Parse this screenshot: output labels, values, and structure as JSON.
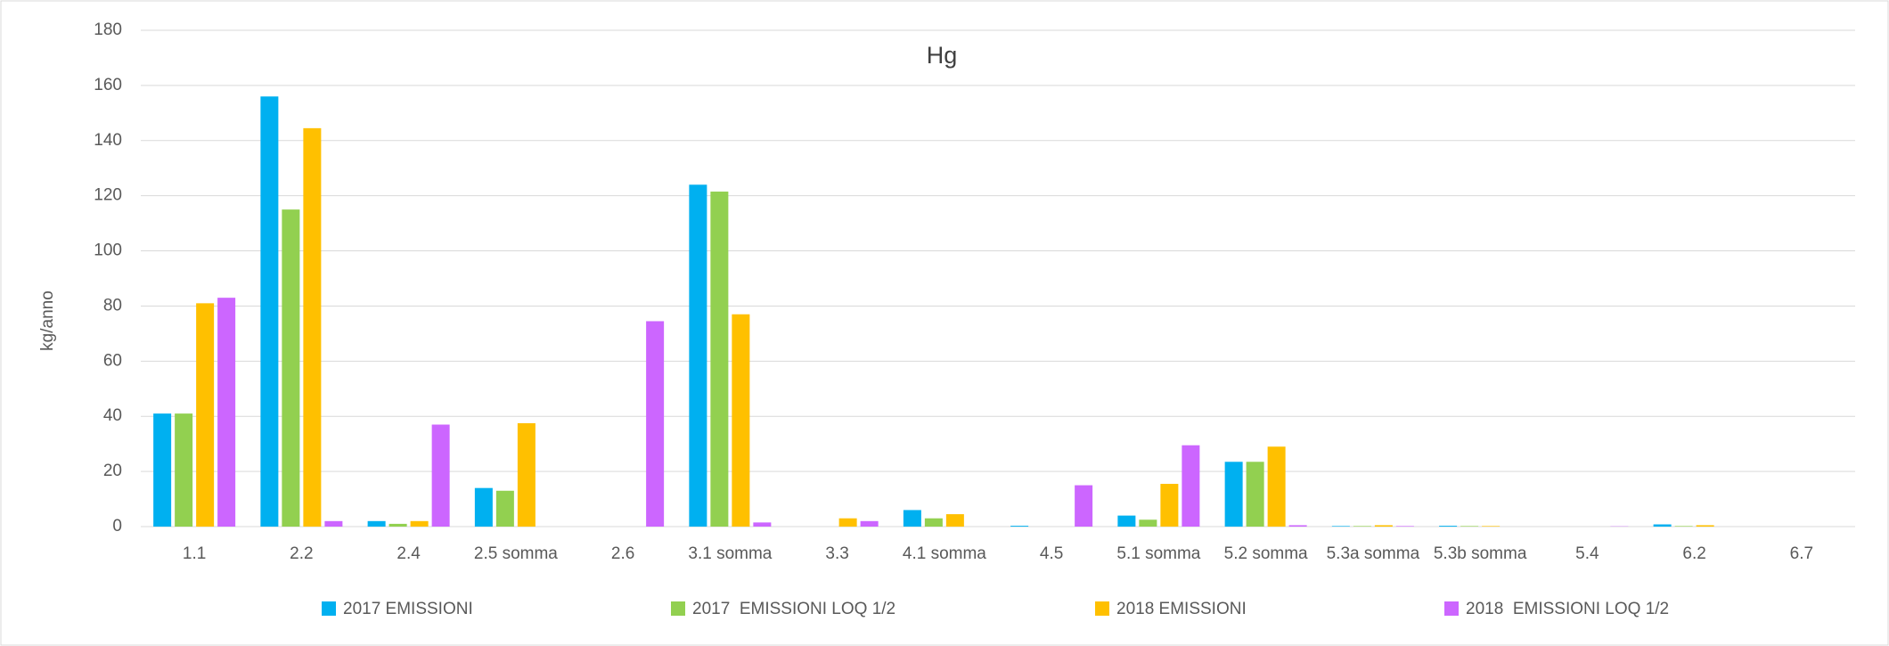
{
  "chart_data": {
    "type": "bar",
    "title": "Hg",
    "y_label": "kg/anno",
    "categories": [
      "1.1",
      "2.2",
      "2.4",
      "2.5 somma",
      "2.6",
      "3.1 somma",
      "3.3",
      "4.1 somma",
      "4.5",
      "5.1 somma",
      "5.2 somma",
      "5.3a somma",
      "5.3b somma",
      "5.4",
      "6.2",
      "6.7"
    ],
    "series": [
      {
        "name": "2017 EMISSIONI",
        "color": "#00b0f0",
        "values": [
          41,
          156,
          2,
          14,
          0,
          124,
          0,
          6,
          0.3,
          4,
          23.5,
          0.2,
          0.3,
          0,
          0.8,
          0
        ]
      },
      {
        "name": "2017  EMISSIONI LOQ 1/2",
        "color": "#92d050",
        "values": [
          41,
          115,
          1,
          13,
          0,
          121.5,
          0,
          3,
          0,
          2.5,
          23.5,
          0.2,
          0.2,
          0,
          0.2,
          0
        ]
      },
      {
        "name": "2018 EMISSIONI",
        "color": "#ffc000",
        "values": [
          81,
          144.5,
          2,
          37.5,
          0,
          77,
          3,
          4.5,
          0,
          15.5,
          29,
          0.5,
          0.2,
          0,
          0.5,
          0
        ]
      },
      {
        "name": "2018  EMISSIONI LOQ 1/2",
        "color": "#cc66ff",
        "values": [
          83,
          2,
          37,
          0,
          74.5,
          1.5,
          2,
          0,
          15,
          29.5,
          0.5,
          0.2,
          0,
          0.1,
          0,
          0
        ]
      }
    ],
    "ylim": [
      0,
      180
    ],
    "yticks": [
      0,
      20,
      40,
      60,
      80,
      100,
      120,
      140,
      160,
      180
    ],
    "grid": true,
    "legend": "bottom"
  }
}
